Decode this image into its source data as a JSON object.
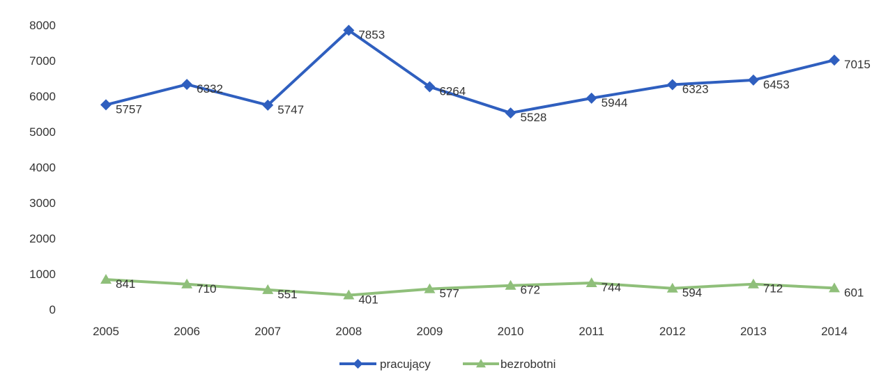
{
  "chart_data": {
    "type": "line",
    "title": "",
    "xlabel": "",
    "ylabel": "",
    "categories": [
      "2005",
      "2006",
      "2007",
      "2008",
      "2009",
      "2010",
      "2011",
      "2012",
      "2013",
      "2014"
    ],
    "ylim": [
      0,
      8000
    ],
    "yticks": [
      0,
      1000,
      2000,
      3000,
      4000,
      5000,
      6000,
      7000,
      8000
    ],
    "grid": false,
    "legend_position": "bottom",
    "series": [
      {
        "name": "pracujący",
        "color": "#2f5fbf",
        "marker": "diamond",
        "values": [
          5757,
          6332,
          5747,
          7853,
          6264,
          5528,
          5944,
          6323,
          6453,
          7015
        ]
      },
      {
        "name": "bezrobotni",
        "color": "#8fbf7a",
        "marker": "triangle",
        "values": [
          841,
          710,
          551,
          401,
          577,
          672,
          744,
          594,
          712,
          601
        ]
      }
    ]
  }
}
